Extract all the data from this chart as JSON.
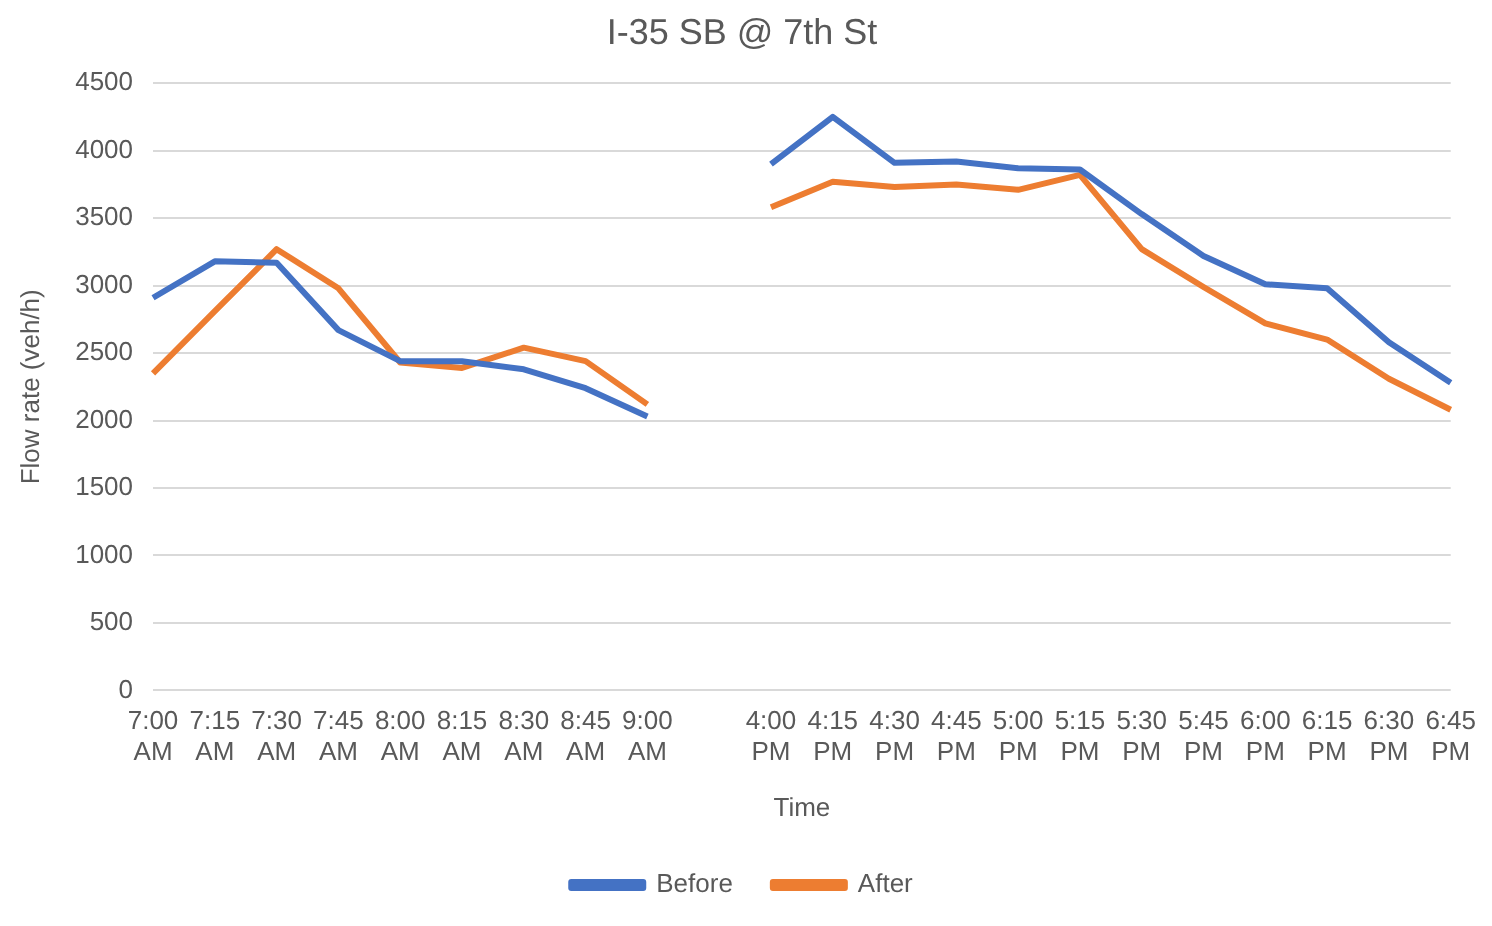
{
  "chart_data": {
    "type": "line",
    "title": "I-35 SB @ 7th St",
    "xlabel": "Time",
    "ylabel": "Flow rate (veh/h)",
    "categories": [
      "7:00 AM",
      "7:15 AM",
      "7:30 AM",
      "7:45 AM",
      "8:00 AM",
      "8:15 AM",
      "8:30 AM",
      "8:45 AM",
      "9:00 AM",
      null,
      "4:00 PM",
      "4:15 PM",
      "4:30 PM",
      "4:45 PM",
      "5:00 PM",
      "5:15 PM",
      "5:30 PM",
      "5:45 PM",
      "6:00 PM",
      "6:15 PM",
      "6:30 PM",
      "6:45 PM"
    ],
    "series": [
      {
        "name": "Before",
        "color": "#4472c4",
        "values": [
          2910,
          3180,
          3170,
          2670,
          2440,
          2440,
          2380,
          2240,
          2030,
          null,
          3900,
          4250,
          3910,
          3920,
          3870,
          3860,
          3530,
          3220,
          3010,
          2980,
          2580,
          2280
        ]
      },
      {
        "name": "After",
        "color": "#ed7d31",
        "values": [
          2350,
          2810,
          3270,
          2980,
          2430,
          2390,
          2540,
          2440,
          2120,
          null,
          3580,
          3770,
          3730,
          3750,
          3710,
          3820,
          3270,
          2990,
          2720,
          2600,
          2310,
          2080
        ]
      }
    ],
    "ylim": [
      0,
      4500
    ],
    "yticks": [
      0,
      500,
      1000,
      1500,
      2000,
      2500,
      3000,
      3500,
      4000,
      4500
    ],
    "grid": "y",
    "legend": "bottom",
    "marker": "none",
    "line_style": "solid"
  }
}
